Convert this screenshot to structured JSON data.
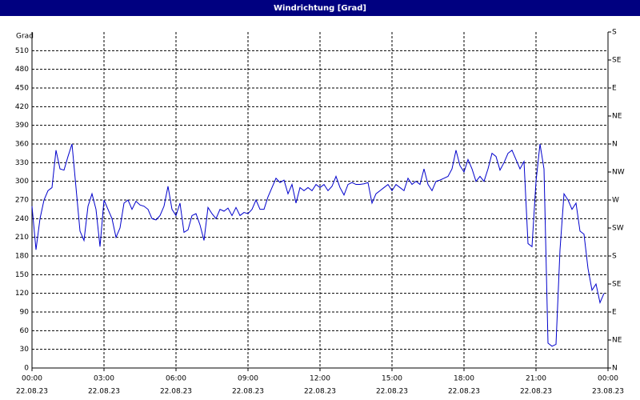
{
  "chart_data": {
    "type": "line",
    "title": "Windrichtung [Grad]",
    "y_label": "Grad",
    "x": [
      0,
      10,
      20,
      30,
      40,
      50,
      60,
      70,
      80,
      90,
      100,
      110,
      120,
      130,
      140,
      150,
      160,
      170,
      180,
      190,
      200,
      210,
      220,
      230,
      240,
      250,
      260,
      270,
      280,
      290,
      300,
      310,
      320,
      330,
      340,
      350,
      360,
      370,
      380,
      390,
      400,
      410,
      420,
      430,
      440,
      450,
      460,
      470,
      480,
      490,
      500,
      510,
      520,
      530,
      540,
      550,
      560,
      570,
      580,
      590,
      600,
      610,
      620,
      630,
      640,
      650,
      660,
      670,
      680,
      690,
      700,
      710,
      720,
      730,
      740,
      750,
      760,
      770,
      780,
      790,
      800,
      810,
      820,
      830,
      840,
      850,
      860,
      870,
      880,
      890,
      900,
      910,
      920,
      930,
      940,
      950,
      960,
      970,
      980,
      990,
      1000,
      1010,
      1020,
      1030,
      1040,
      1050,
      1060,
      1070,
      1080,
      1090,
      1100,
      1110,
      1120,
      1130,
      1140,
      1150,
      1160,
      1170,
      1180,
      1190,
      1200,
      1210,
      1220,
      1230,
      1240,
      1250,
      1260,
      1270,
      1280,
      1290,
      1300,
      1310,
      1320,
      1330,
      1340,
      1350,
      1360,
      1370,
      1380,
      1390,
      1400,
      1410,
      1420,
      1430
    ],
    "series": [
      {
        "name": "Windrichtung",
        "color": "#0000cc",
        "values": [
          260,
          190,
          240,
          270,
          285,
          290,
          350,
          320,
          318,
          340,
          360,
          290,
          220,
          205,
          260,
          280,
          255,
          195,
          270,
          255,
          240,
          210,
          225,
          265,
          270,
          255,
          268,
          262,
          260,
          255,
          240,
          238,
          245,
          260,
          292,
          255,
          245,
          265,
          218,
          222,
          245,
          248,
          230,
          205,
          258,
          248,
          240,
          255,
          252,
          257,
          245,
          258,
          245,
          250,
          248,
          255,
          270,
          255,
          255,
          275,
          290,
          305,
          298,
          302,
          280,
          295,
          265,
          290,
          285,
          290,
          285,
          295,
          290,
          295,
          285,
          292,
          308,
          290,
          278,
          295,
          298,
          295,
          295,
          296,
          298,
          265,
          280,
          285,
          290,
          295,
          285,
          295,
          290,
          285,
          305,
          295,
          300,
          295,
          320,
          295,
          285,
          300,
          302,
          305,
          308,
          320,
          350,
          325,
          315,
          335,
          320,
          300,
          308,
          300,
          320,
          345,
          340,
          318,
          330,
          345,
          350,
          335,
          320,
          332,
          200,
          195,
          300,
          360,
          320,
          40,
          35,
          38,
          190,
          280,
          270,
          255,
          265,
          220,
          215,
          160,
          125,
          135,
          105,
          120
        ]
      }
    ],
    "xlim": [
      0,
      1440
    ],
    "xticks": [
      {
        "value": 0,
        "label": "00:00"
      },
      {
        "value": 180,
        "label": "03:00"
      },
      {
        "value": 360,
        "label": "06:00"
      },
      {
        "value": 540,
        "label": "09:00"
      },
      {
        "value": 720,
        "label": "12:00"
      },
      {
        "value": 900,
        "label": "15:00"
      },
      {
        "value": 1080,
        "label": "18:00"
      },
      {
        "value": 1260,
        "label": "21:00"
      },
      {
        "value": 1440,
        "label": "00:00"
      }
    ],
    "xtick_dates": [
      "22.08.23",
      "22.08.23",
      "22.08.23",
      "22.08.23",
      "22.08.23",
      "22.08.23",
      "22.08.23",
      "22.08.23",
      "23.08.23"
    ],
    "ylim": [
      0,
      540
    ],
    "yticks": [
      0,
      30,
      60,
      90,
      120,
      150,
      180,
      210,
      240,
      270,
      300,
      330,
      360,
      390,
      420,
      450,
      480,
      510
    ],
    "y2lim": [
      0,
      540
    ],
    "y2ticks": [
      {
        "value": 0,
        "label": "N"
      },
      {
        "value": 45,
        "label": "NE"
      },
      {
        "value": 90,
        "label": "E"
      },
      {
        "value": 135,
        "label": "SE"
      },
      {
        "value": 180,
        "label": "S"
      },
      {
        "value": 225,
        "label": "SW"
      },
      {
        "value": 270,
        "label": "W"
      },
      {
        "value": 315,
        "label": "NW"
      },
      {
        "value": 360,
        "label": "N"
      },
      {
        "value": 405,
        "label": "NE"
      },
      {
        "value": 450,
        "label": "E"
      },
      {
        "value": 495,
        "label": "SE"
      },
      {
        "value": 540,
        "label": "S"
      }
    ],
    "grid": true
  }
}
